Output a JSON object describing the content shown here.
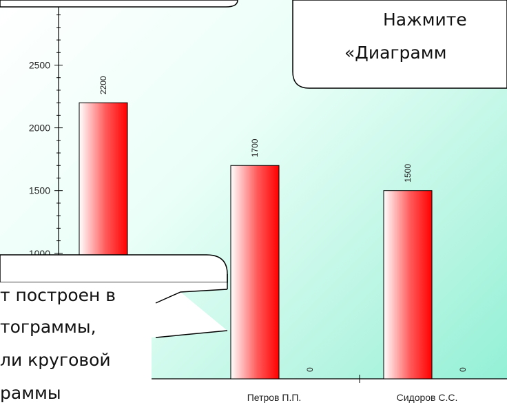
{
  "chart_data": {
    "type": "bar",
    "categories": [
      "",
      "Петров П.П.",
      "Сидоров С.С."
    ],
    "series": [
      {
        "values": [
          2200,
          1700,
          1500
        ],
        "color_from": "#ffffff",
        "color_to": "#ff0000"
      },
      {
        "values": [
          null,
          0,
          0
        ]
      }
    ],
    "value_labels": [
      "2200",
      "1700",
      "1500",
      "0",
      "0"
    ],
    "ytick_labels": [
      "1000",
      "1500",
      "2000",
      "2500"
    ],
    "yticks": [
      1000,
      1500,
      2000,
      2500
    ],
    "ylim": [
      0,
      2950
    ],
    "grid": false,
    "bar_color": "#ff0000",
    "plot_background": "#8ef0d4"
  },
  "callouts": {
    "top_right": {
      "line1": "Нажмите",
      "line2": "«Диаграмм"
    },
    "bottom_left": {
      "line1": "т построен в",
      "line2": "тограммы,",
      "line3": "ли круговой",
      "line4": "раммы"
    }
  }
}
